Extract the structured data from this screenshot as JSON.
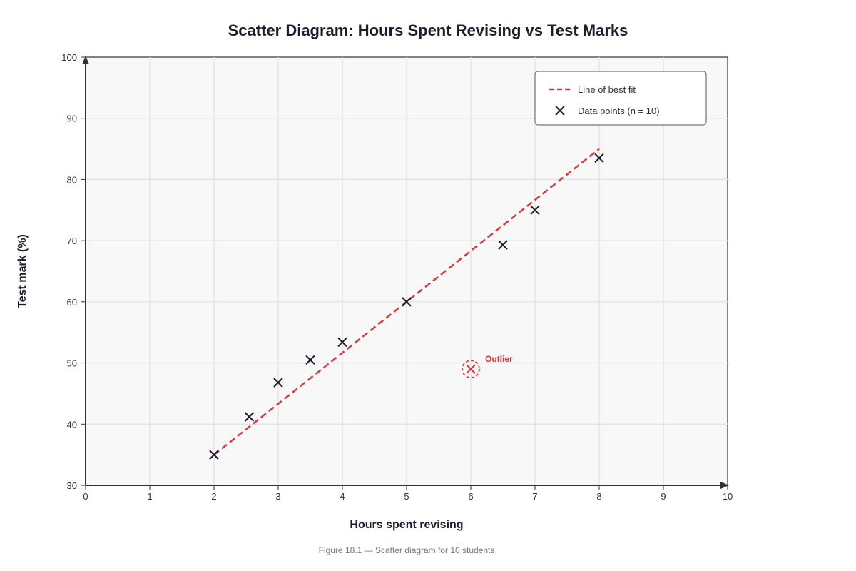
{
  "chart_data": {
    "type": "scatter",
    "title": "Scatter Diagram: Hours Spent Revising vs Test Marks",
    "xlabel": "Hours spent revising",
    "ylabel": "Test mark (%)",
    "xlim": [
      0,
      10
    ],
    "ylim": [
      30,
      100
    ],
    "xticks": [
      "0",
      "1",
      "2",
      "3",
      "4",
      "5",
      "6",
      "7",
      "8",
      "9",
      "10"
    ],
    "yticks": [
      "30",
      "40",
      "50",
      "60",
      "70",
      "80",
      "90",
      "100"
    ],
    "grid": true,
    "legend_position": "top-right",
    "series": [
      {
        "name": "Data points (n = 10)",
        "marker": "x",
        "color": "#1c1c2c",
        "points": [
          {
            "x": 2,
            "y": 35
          },
          {
            "x": 2.55,
            "y": 41.2
          },
          {
            "x": 3,
            "y": 46.8
          },
          {
            "x": 3.5,
            "y": 50.5
          },
          {
            "x": 4,
            "y": 53.4
          },
          {
            "x": 5,
            "y": 60
          },
          {
            "x": 6,
            "y": 49
          },
          {
            "x": 6.5,
            "y": 69.3
          },
          {
            "x": 7,
            "y": 75
          },
          {
            "x": 8,
            "y": 83.5
          }
        ]
      }
    ],
    "best_fit": {
      "name": "Line of best fit",
      "color": "#d63b3b",
      "style": "dashed",
      "start": {
        "x": 2,
        "y": 35
      },
      "end": {
        "x": 8,
        "y": 85
      }
    },
    "annotations": [
      {
        "text": "Outlier",
        "x": 6,
        "y": 49,
        "color": "#d63b3b"
      }
    ]
  },
  "caption": "Figure 18.1 — Scatter diagram for 10 students"
}
